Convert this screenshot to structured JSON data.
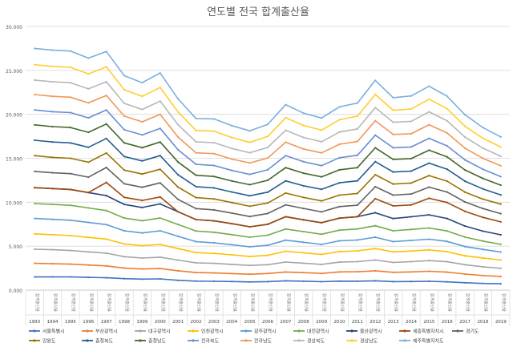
{
  "chart_data": {
    "type": "line",
    "title": "연도별 전국 합계출산율",
    "xlabel": "",
    "ylabel": "",
    "ylim": [
      0,
      30
    ],
    "yticks": [
      "0.000",
      "5.000",
      "10.000",
      "15.000",
      "20.000",
      "25.000",
      "30.000"
    ],
    "ytick_values": [
      0,
      5,
      10,
      15,
      20,
      25,
      30
    ],
    "grid": true,
    "legend_position": "bottom",
    "stacked": true,
    "category_sublabel": "합계출산율",
    "categories": [
      "1993",
      "1994",
      "1995",
      "1996",
      "1997",
      "1998",
      "1999",
      "2000",
      "2001",
      "2002",
      "2003",
      "2004",
      "2005",
      "2006",
      "2007",
      "2008",
      "2009",
      "2010",
      "2011",
      "2012",
      "2013",
      "2014",
      "2015",
      "2016",
      "2017",
      "2018",
      "2019"
    ],
    "series": [
      {
        "name": "서울특별시",
        "color": "#4472C4",
        "values": [
          1.5,
          1.5,
          1.5,
          1.45,
          1.4,
          1.3,
          1.25,
          1.28,
          1.11,
          1.02,
          1.0,
          0.98,
          0.93,
          0.97,
          1.06,
          1.01,
          0.96,
          1.02,
          1.01,
          1.06,
          0.97,
          0.98,
          1.0,
          0.94,
          0.84,
          0.76,
          0.72
        ]
      },
      {
        "name": "부산광역시",
        "color": "#ED7D31",
        "values": [
          1.55,
          1.5,
          1.45,
          1.4,
          1.35,
          1.2,
          1.15,
          1.17,
          1.09,
          0.98,
          0.95,
          0.9,
          0.88,
          0.92,
          1.0,
          0.98,
          0.94,
          1.05,
          1.08,
          1.14,
          1.05,
          1.09,
          1.14,
          1.1,
          0.98,
          0.9,
          0.83
        ]
      },
      {
        "name": "대구광역시",
        "color": "#A5A5A5",
        "values": [
          1.6,
          1.6,
          1.55,
          1.5,
          1.45,
          1.3,
          1.25,
          1.3,
          1.22,
          1.1,
          1.1,
          1.05,
          1.0,
          1.0,
          1.13,
          1.07,
          1.03,
          1.11,
          1.15,
          1.22,
          1.13,
          1.17,
          1.22,
          1.19,
          1.07,
          0.99,
          0.93
        ]
      },
      {
        "name": "인천광역시",
        "color": "#FFC000",
        "values": [
          1.75,
          1.7,
          1.7,
          1.65,
          1.6,
          1.45,
          1.4,
          1.45,
          1.3,
          1.17,
          1.13,
          1.08,
          1.01,
          1.07,
          1.23,
          1.18,
          1.13,
          1.21,
          1.23,
          1.3,
          1.2,
          1.21,
          1.22,
          1.14,
          1.01,
          1.01,
          0.94
        ]
      },
      {
        "name": "광주광역시",
        "color": "#5B9BD5",
        "values": [
          1.75,
          1.75,
          1.75,
          1.7,
          1.65,
          1.5,
          1.45,
          1.55,
          1.4,
          1.25,
          1.2,
          1.15,
          1.1,
          1.14,
          1.26,
          1.2,
          1.14,
          1.22,
          1.23,
          1.3,
          1.17,
          1.2,
          1.21,
          1.17,
          1.05,
          0.97,
          0.91
        ]
      },
      {
        "name": "대전광역시",
        "color": "#70AD47",
        "values": [
          1.7,
          1.7,
          1.7,
          1.65,
          1.6,
          1.45,
          1.4,
          1.45,
          1.35,
          1.2,
          1.2,
          1.15,
          1.1,
          1.15,
          1.27,
          1.22,
          1.16,
          1.21,
          1.26,
          1.3,
          1.23,
          1.25,
          1.28,
          1.19,
          1.08,
          0.95,
          0.88
        ]
      },
      {
        "name": "울산광역시",
        "color": "#264478",
        "values": [
          1.8,
          1.8,
          1.8,
          1.75,
          1.7,
          1.55,
          1.5,
          1.6,
          1.45,
          1.3,
          1.3,
          1.25,
          1.18,
          1.24,
          1.4,
          1.34,
          1.31,
          1.37,
          1.39,
          1.48,
          1.39,
          1.44,
          1.49,
          1.42,
          1.26,
          1.13,
          1.08
        ]
      },
      {
        "name": "세종특별자치시",
        "color": "#9E480E",
        "values": [
          0,
          0,
          0,
          0,
          1.5,
          0.8,
          0.8,
          0.8,
          0,
          0,
          0,
          0,
          0,
          0,
          0,
          0,
          0,
          0,
          0,
          1.6,
          1.44,
          1.35,
          1.89,
          1.82,
          1.67,
          1.57,
          1.47
        ]
      },
      {
        "name": "경기도",
        "color": "#636363",
        "values": [
          1.85,
          1.8,
          1.8,
          1.75,
          1.7,
          1.55,
          1.5,
          1.6,
          1.4,
          1.25,
          1.25,
          1.2,
          1.17,
          1.23,
          1.35,
          1.29,
          1.23,
          1.31,
          1.31,
          1.36,
          1.23,
          1.24,
          1.27,
          1.19,
          1.07,
          1.0,
          0.94
        ]
      },
      {
        "name": "강원도",
        "color": "#997300",
        "values": [
          1.8,
          1.75,
          1.75,
          1.7,
          1.65,
          1.55,
          1.5,
          1.55,
          1.4,
          1.25,
          1.25,
          1.2,
          1.17,
          1.19,
          1.34,
          1.25,
          1.25,
          1.31,
          1.34,
          1.37,
          1.25,
          1.25,
          1.31,
          1.24,
          1.12,
          1.07,
          1.08
        ]
      },
      {
        "name": "충청북도",
        "color": "#255E91",
        "values": [
          1.75,
          1.75,
          1.75,
          1.7,
          1.65,
          1.55,
          1.5,
          1.55,
          1.4,
          1.25,
          1.25,
          1.2,
          1.19,
          1.23,
          1.39,
          1.32,
          1.32,
          1.4,
          1.43,
          1.49,
          1.37,
          1.36,
          1.41,
          1.36,
          1.24,
          1.17,
          1.05
        ]
      },
      {
        "name": "충청남도",
        "color": "#43682B",
        "values": [
          1.75,
          1.75,
          1.75,
          1.7,
          1.65,
          1.55,
          1.5,
          1.55,
          1.45,
          1.3,
          1.3,
          1.25,
          1.26,
          1.35,
          1.5,
          1.44,
          1.41,
          1.48,
          1.5,
          1.57,
          1.44,
          1.42,
          1.48,
          1.4,
          1.28,
          1.19,
          1.11
        ]
      },
      {
        "name": "전라북도",
        "color": "#698ED0",
        "values": [
          1.7,
          1.7,
          1.7,
          1.65,
          1.6,
          1.5,
          1.45,
          1.55,
          1.4,
          1.25,
          1.25,
          1.2,
          1.18,
          1.2,
          1.37,
          1.31,
          1.28,
          1.37,
          1.41,
          1.44,
          1.32,
          1.33,
          1.35,
          1.25,
          1.15,
          1.04,
          0.97
        ]
      },
      {
        "name": "전라남도",
        "color": "#F1975A",
        "values": [
          1.75,
          1.75,
          1.75,
          1.7,
          1.65,
          1.55,
          1.5,
          1.6,
          1.45,
          1.3,
          1.35,
          1.3,
          1.29,
          1.34,
          1.52,
          1.45,
          1.45,
          1.54,
          1.57,
          1.64,
          1.52,
          1.5,
          1.55,
          1.47,
          1.33,
          1.24,
          1.23
        ]
      },
      {
        "name": "경상북도",
        "color": "#B7B7B7",
        "values": [
          1.65,
          1.65,
          1.65,
          1.6,
          1.55,
          1.45,
          1.4,
          1.5,
          1.4,
          1.25,
          1.25,
          1.2,
          1.17,
          1.2,
          1.36,
          1.31,
          1.27,
          1.38,
          1.43,
          1.49,
          1.38,
          1.41,
          1.46,
          1.4,
          1.26,
          1.17,
          1.09
        ]
      },
      {
        "name": "경상남도",
        "color": "#FFCD33",
        "values": [
          1.75,
          1.75,
          1.75,
          1.7,
          1.7,
          1.55,
          1.5,
          1.55,
          1.45,
          1.3,
          1.3,
          1.25,
          1.18,
          1.25,
          1.43,
          1.37,
          1.32,
          1.41,
          1.45,
          1.5,
          1.37,
          1.41,
          1.44,
          1.36,
          1.23,
          1.12,
          1.05
        ]
      },
      {
        "name": "제주특별자치도",
        "color": "#7CAFDD",
        "values": [
          1.85,
          1.85,
          1.85,
          1.8,
          1.75,
          1.6,
          1.55,
          1.65,
          1.5,
          1.35,
          1.4,
          1.35,
          1.31,
          1.38,
          1.49,
          1.39,
          1.38,
          1.46,
          1.49,
          1.6,
          1.43,
          1.48,
          1.48,
          1.43,
          1.31,
          1.22,
          1.15
        ]
      }
    ]
  }
}
